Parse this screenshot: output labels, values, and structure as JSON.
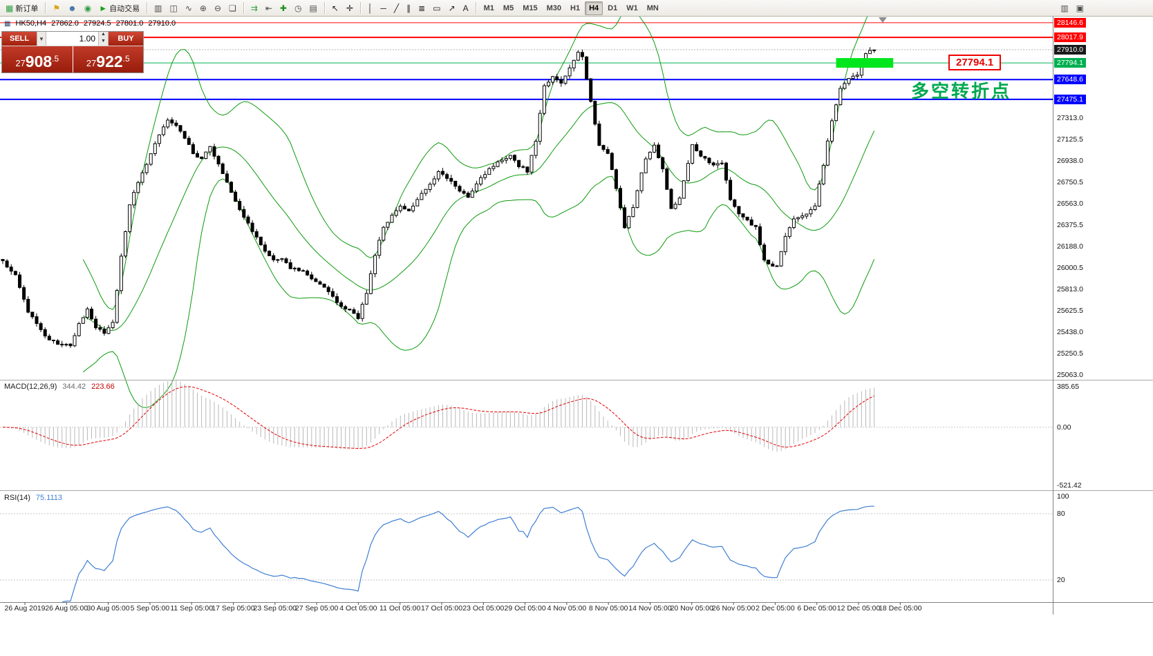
{
  "toolbar": {
    "items": [
      {
        "type": "button",
        "name": "new-order-button",
        "icon": "new-order-icon",
        "glyph": "▦",
        "color": "#2f9e44",
        "label": "新订单"
      },
      {
        "type": "sep"
      },
      {
        "type": "icon",
        "name": "announcement-icon",
        "glyph": "⚑",
        "color": "#d9a412"
      },
      {
        "type": "icon",
        "name": "profile-icon",
        "glyph": "☻",
        "color": "#3a6ea5"
      },
      {
        "type": "icon",
        "name": "community-icon",
        "glyph": "◉",
        "color": "#2f9e44"
      },
      {
        "type": "button",
        "name": "autotrade-button",
        "icon": "autotrade-play-icon",
        "glyph": "►",
        "color": "#18a018",
        "label": "自动交易"
      },
      {
        "type": "sep"
      },
      {
        "type": "icon",
        "name": "bar-chart-icon",
        "glyph": "▥",
        "color": "#4a4a4a"
      },
      {
        "type": "icon",
        "name": "candlestick-chart-icon",
        "glyph": "◫",
        "color": "#4a4a4a"
      },
      {
        "type": "icon",
        "name": "line-chart-icon",
        "glyph": "∿",
        "color": "#4a4a4a"
      },
      {
        "type": "icon",
        "name": "zoom-in-icon",
        "glyph": "⊕",
        "color": "#4a4a4a"
      },
      {
        "type": "icon",
        "name": "zoom-out-icon",
        "glyph": "⊖",
        "color": "#4a4a4a"
      },
      {
        "type": "icon",
        "name": "tile-windows-icon",
        "glyph": "❏",
        "color": "#4a4a4a"
      },
      {
        "type": "sep"
      },
      {
        "type": "icon",
        "name": "auto-scroll-icon",
        "glyph": "⇉",
        "color": "#2f9e44"
      },
      {
        "type": "icon",
        "name": "chart-shift-icon",
        "glyph": "⇤",
        "color": "#4a4a4a"
      },
      {
        "type": "icon",
        "name": "add-indicator-icon",
        "glyph": "✚",
        "color": "#1a8f1a"
      },
      {
        "type": "icon",
        "name": "period-clock-icon",
        "glyph": "◷",
        "color": "#4a4a4a"
      },
      {
        "type": "icon",
        "name": "template-icon",
        "glyph": "▤",
        "color": "#4a4a4a"
      },
      {
        "type": "sep"
      },
      {
        "type": "icon",
        "name": "cursor-icon",
        "glyph": "↖",
        "color": "#222222"
      },
      {
        "type": "icon",
        "name": "crosshair-icon",
        "glyph": "✛",
        "color": "#222222"
      },
      {
        "type": "sep"
      },
      {
        "type": "icon",
        "name": "vertical-line-icon",
        "glyph": "│",
        "color": "#222222"
      },
      {
        "type": "icon",
        "name": "horizontal-line-icon",
        "glyph": "─",
        "color": "#222222"
      },
      {
        "type": "icon",
        "name": "trendline-icon",
        "glyph": "╱",
        "color": "#222222"
      },
      {
        "type": "icon",
        "name": "channel-icon",
        "glyph": "∥",
        "color": "#222222"
      },
      {
        "type": "icon",
        "name": "fibonacci-icon",
        "glyph": "≣",
        "color": "#222222"
      },
      {
        "type": "icon",
        "name": "shapes-icon",
        "glyph": "▭",
        "color": "#222222"
      },
      {
        "type": "icon",
        "name": "arrows-icon",
        "glyph": "↗",
        "color": "#222222"
      },
      {
        "type": "icon",
        "name": "text-label-icon",
        "glyph": "A",
        "color": "#222222"
      },
      {
        "type": "sep"
      },
      {
        "type": "tf",
        "name": "timeframe-m1",
        "label": "M1"
      },
      {
        "type": "tf",
        "name": "timeframe-m5",
        "label": "M5"
      },
      {
        "type": "tf",
        "name": "timeframe-m15",
        "label": "M15"
      },
      {
        "type": "tf",
        "name": "timeframe-m30",
        "label": "M30"
      },
      {
        "type": "tf",
        "name": "timeframe-h1",
        "label": "H1"
      },
      {
        "type": "tf",
        "name": "timeframe-h4",
        "label": "H4",
        "active": true
      },
      {
        "type": "tf",
        "name": "timeframe-d1",
        "label": "D1"
      },
      {
        "type": "tf",
        "name": "timeframe-w1",
        "label": "W1"
      },
      {
        "type": "tf",
        "name": "timeframe-mn",
        "label": "MN"
      },
      {
        "type": "spacer"
      },
      {
        "type": "icon",
        "name": "market-watch-icon",
        "glyph": "▥",
        "color": "#4a4a4a"
      },
      {
        "type": "icon",
        "name": "data-window-icon",
        "glyph": "▣",
        "color": "#4a4a4a"
      }
    ]
  },
  "symbol_info": {
    "name": "HK50,H4",
    "open": "27862.0",
    "high": "27924.5",
    "low": "27801.0",
    "close": "27910.0"
  },
  "trade_panel": {
    "sell_label": "SELL",
    "buy_label": "BUY",
    "lot": "1.00",
    "sell_price": {
      "small": "27",
      "big": "908",
      "sup": ".5"
    },
    "buy_price": {
      "small": "27",
      "big": "922",
      "sup": ".5"
    }
  },
  "annotations": {
    "turning_point": "多空转折点",
    "price_box": "27794.1"
  },
  "price_axis": {
    "tags": [
      {
        "price": 28146.6,
        "text": "28146.6",
        "bg": "#ff0000"
      },
      {
        "price": 28017.9,
        "text": "28017.9",
        "bg": "#ff0000"
      },
      {
        "price": 27910.0,
        "text": "27910.0",
        "bg": "#1a1a1a"
      },
      {
        "price": 27794.1,
        "text": "27794.1",
        "bg": "#00b050"
      },
      {
        "price": 27648.6,
        "text": "27648.6",
        "bg": "#0000ff"
      },
      {
        "price": 27475.1,
        "text": "27475.1",
        "bg": "#0000ff"
      }
    ],
    "gridline_labels": [
      "27313.0",
      "27125.5",
      "26938.0",
      "26750.5",
      "26563.0",
      "26375.5",
      "26188.0",
      "26000.5",
      "25813.0",
      "25625.5",
      "25438.0",
      "25250.5",
      "25063.0"
    ]
  },
  "macd": {
    "label": "MACD(12,26,9)",
    "value_main": "344.42",
    "value_signal": "223.66",
    "axis": [
      "385.65",
      "0.00",
      "-521.42"
    ]
  },
  "rsi": {
    "label": "RSI(14)",
    "value": "75.1113",
    "axis": [
      "100",
      "80",
      "20"
    ],
    "levels": [
      80,
      20
    ]
  },
  "time_axis": [
    "26 Aug 2019",
    "26 Aug 05:00",
    "30 Aug 05:00",
    "5 Sep 05:00",
    "11 Sep 05:00",
    "17 Sep 05:00",
    "23 Sep 05:00",
    "27 Sep 05:00",
    "4 Oct 05:00",
    "11 Oct 05:00",
    "17 Oct 05:00",
    "23 Oct 05:00",
    "29 Oct 05:00",
    "4 Nov 05:00",
    "8 Nov 05:00",
    "14 Nov 05:00",
    "20 Nov 05:00",
    "26 Nov 05:00",
    "2 Dec 05:00",
    "6 Dec 05:00",
    "12 Dec 05:00",
    "18 Dec 05:00"
  ],
  "chart_data": {
    "type": "candlestick",
    "symbol": "HK50",
    "timeframe": "H4",
    "ohlc_display": {
      "open": 27862.0,
      "high": 27924.5,
      "low": 27801.0,
      "close": 27910.0
    },
    "price_range": [
      25020,
      28200
    ],
    "bid_price": 27910.0,
    "candles_n": 207,
    "close_waypoints": [
      [
        0,
        26050
      ],
      [
        3,
        25950
      ],
      [
        6,
        25600
      ],
      [
        8,
        25520
      ],
      [
        10,
        25400
      ],
      [
        13,
        25340
      ],
      [
        16,
        25320
      ],
      [
        18,
        25500
      ],
      [
        20,
        25650
      ],
      [
        22,
        25470
      ],
      [
        24,
        25430
      ],
      [
        26,
        25520
      ],
      [
        28,
        26100
      ],
      [
        30,
        26550
      ],
      [
        32,
        26750
      ],
      [
        34,
        26900
      ],
      [
        36,
        27100
      ],
      [
        39,
        27300
      ],
      [
        41,
        27240
      ],
      [
        43,
        27140
      ],
      [
        45,
        27000
      ],
      [
        47,
        26960
      ],
      [
        49,
        27060
      ],
      [
        51,
        26900
      ],
      [
        53,
        26740
      ],
      [
        56,
        26510
      ],
      [
        58,
        26400
      ],
      [
        60,
        26260
      ],
      [
        62,
        26150
      ],
      [
        64,
        26060
      ],
      [
        66,
        26090
      ],
      [
        68,
        26000
      ],
      [
        71,
        25970
      ],
      [
        74,
        25880
      ],
      [
        77,
        25800
      ],
      [
        79,
        25700
      ],
      [
        81,
        25650
      ],
      [
        84,
        25560
      ],
      [
        86,
        25780
      ],
      [
        88,
        26120
      ],
      [
        90,
        26360
      ],
      [
        92,
        26450
      ],
      [
        94,
        26540
      ],
      [
        96,
        26490
      ],
      [
        100,
        26690
      ],
      [
        103,
        26840
      ],
      [
        105,
        26790
      ],
      [
        107,
        26710
      ],
      [
        110,
        26630
      ],
      [
        113,
        26780
      ],
      [
        115,
        26860
      ],
      [
        117,
        26930
      ],
      [
        120,
        26990
      ],
      [
        122,
        26890
      ],
      [
        124,
        26850
      ],
      [
        126,
        27120
      ],
      [
        128,
        27590
      ],
      [
        130,
        27680
      ],
      [
        132,
        27610
      ],
      [
        134,
        27760
      ],
      [
        136,
        27900
      ],
      [
        137,
        27840
      ],
      [
        139,
        27460
      ],
      [
        141,
        27060
      ],
      [
        143,
        27010
      ],
      [
        145,
        26690
      ],
      [
        147,
        26360
      ],
      [
        149,
        26540
      ],
      [
        152,
        26960
      ],
      [
        154,
        27080
      ],
      [
        156,
        26870
      ],
      [
        158,
        26520
      ],
      [
        160,
        26610
      ],
      [
        163,
        27080
      ],
      [
        165,
        26990
      ],
      [
        168,
        26890
      ],
      [
        170,
        26930
      ],
      [
        172,
        26600
      ],
      [
        174,
        26480
      ],
      [
        176,
        26420
      ],
      [
        178,
        26350
      ],
      [
        180,
        26060
      ],
      [
        183,
        26010
      ],
      [
        185,
        26270
      ],
      [
        187,
        26420
      ],
      [
        190,
        26480
      ],
      [
        192,
        26550
      ],
      [
        194,
        26900
      ],
      [
        196,
        27300
      ],
      [
        198,
        27560
      ],
      [
        200,
        27650
      ],
      [
        202,
        27700
      ],
      [
        204,
        27880
      ],
      [
        206,
        27910
      ]
    ],
    "bollinger": {
      "period": 20,
      "deviation": 2
    },
    "macd_params": [
      12,
      26,
      9
    ],
    "rsi_period": 14,
    "levels": [
      {
        "price": 28146.6,
        "color": "#ff0000",
        "width": 1
      },
      {
        "price": 28017.9,
        "color": "#ff0000",
        "width": 2
      },
      {
        "price": 27794.1,
        "color": "#00b050",
        "width": 1
      },
      {
        "price": 27648.6,
        "color": "#0000ff",
        "width": 2
      },
      {
        "price": 27475.1,
        "color": "#0000ff",
        "width": 2
      }
    ],
    "green_zone": {
      "price": 27794.1,
      "from_candle": 197,
      "to_candle": 210.5
    }
  }
}
